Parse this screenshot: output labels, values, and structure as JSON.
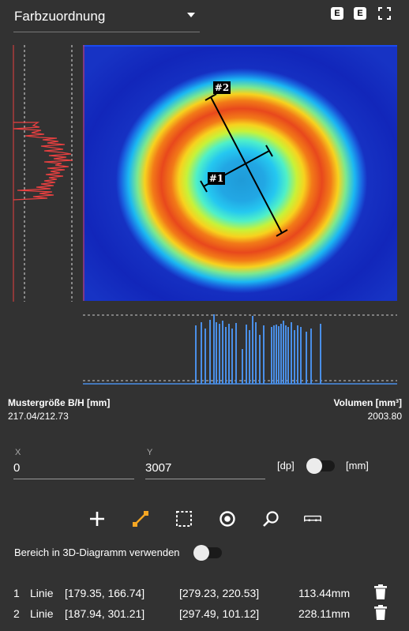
{
  "header": {
    "dropdown_label": "Farbzuordnung",
    "btn1": "E",
    "btn2": "E"
  },
  "heatmap": {
    "markers": [
      "#1",
      "#2"
    ]
  },
  "stats": {
    "size_title": "Mustergröße B/H [mm]",
    "size_value": "217.04/212.73",
    "volume_title": "Volumen [mm³]",
    "volume_value": "2003.80"
  },
  "coords": {
    "x_label": "X",
    "x_value": "0",
    "y_label": "Y",
    "y_value": "3007",
    "unit_dp": "[dp]",
    "unit_mm": "[mm]"
  },
  "toolbar": {
    "tools": [
      "add",
      "line",
      "rectangle",
      "circle",
      "zoom",
      "ruler"
    ],
    "active": "line",
    "accent": "#f5a623"
  },
  "option": {
    "label": "Bereich in 3D-Diagramm verwenden"
  },
  "measurements": [
    {
      "index": "1",
      "type": "Linie",
      "start": "[179.35, 166.74]",
      "end": "[279.23, 220.53]",
      "length": "113.44mm"
    },
    {
      "index": "2",
      "type": "Linie",
      "start": "[187.94, 301.21]",
      "end": "[297.49, 101.12]",
      "length": "228.11mm"
    }
  ]
}
